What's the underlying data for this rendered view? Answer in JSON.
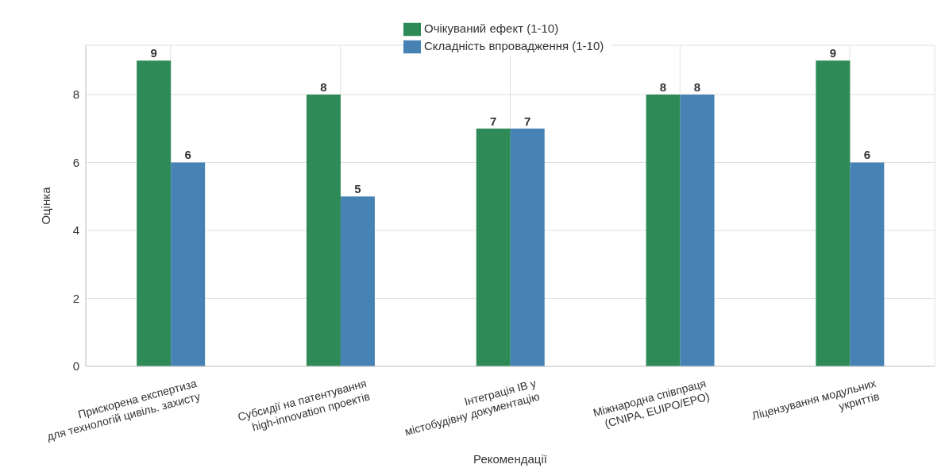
{
  "chart_data": {
    "type": "bar",
    "xlabel": "Рекомендації",
    "ylabel": "Оцінка",
    "categories": [
      "Прискорена експертиза\nдля технологій цивіль. захисту",
      "Субсидії на патентування\nhigh-innovation проектів",
      "Інтеграція ІВ у\nмістобудівну документацію",
      "Міжнародна співпраця\n(CNIPA, EUIPO/EPO)",
      "Ліцензування модульних\nукриттів"
    ],
    "series": [
      {
        "name": "Очікуваний ефект (1-10)",
        "color": "#2e8b57",
        "values": [
          9,
          8,
          7,
          8,
          9
        ]
      },
      {
        "name": "Складність впровадження (1-10)",
        "color": "#4682b4",
        "values": [
          6,
          5,
          7,
          8,
          6
        ]
      }
    ],
    "ylim": [
      0,
      9.45
    ],
    "yticks": [
      0,
      2,
      4,
      6,
      8
    ],
    "grid": true,
    "legend": "top",
    "data_labels": true
  }
}
